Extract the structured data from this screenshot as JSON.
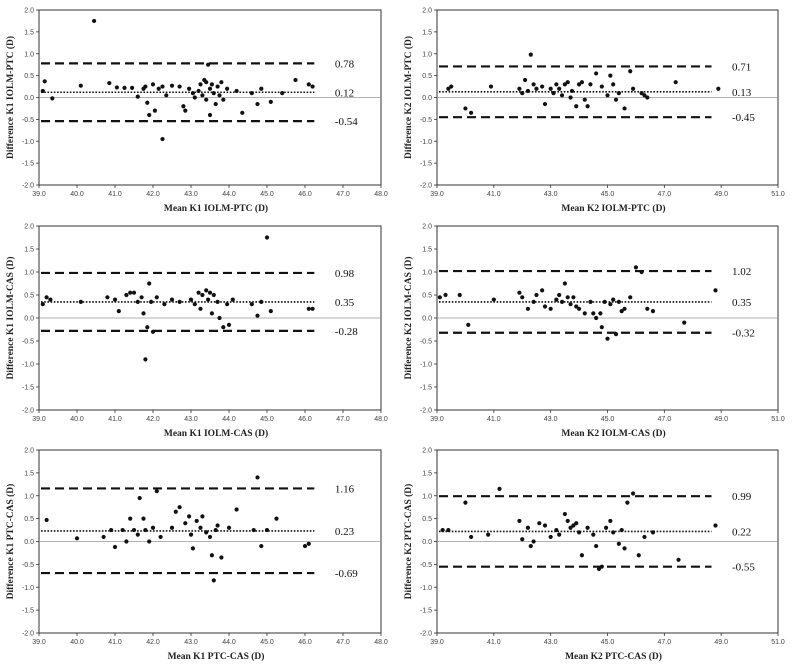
{
  "chart_data": [
    {
      "type": "scatter",
      "xlabel": "Mean K1 IOLM-PTC (D)",
      "ylabel": "Difference K1 IOLM-PTC (D)",
      "xlim": [
        39.0,
        48.0
      ],
      "ylim": [
        -2.0,
        2.0
      ],
      "xticks": [
        "39.0",
        "40.0",
        "41.0",
        "42.0",
        "43.0",
        "44.0",
        "45.0",
        "46.0",
        "47.0",
        "48.0"
      ],
      "yticks": [
        "2.0",
        "1.5",
        "1.0",
        "0.5",
        "0.0",
        "-0.5",
        "-1.0",
        "-1.5",
        "-2.0"
      ],
      "mean_diff": 0.12,
      "upper_loa": 0.78,
      "lower_loa": -0.54,
      "labels": {
        "upper": "0.78",
        "mean": "0.12",
        "lower": "-0.54"
      },
      "points": [
        [
          40.45,
          1.75
        ],
        [
          39.1,
          0.15
        ],
        [
          39.15,
          0.37
        ],
        [
          39.35,
          -0.02
        ],
        [
          40.1,
          0.27
        ],
        [
          40.85,
          0.33
        ],
        [
          41.05,
          0.23
        ],
        [
          41.25,
          0.22
        ],
        [
          41.45,
          0.22
        ],
        [
          41.6,
          0.02
        ],
        [
          41.75,
          0.2
        ],
        [
          41.8,
          0.25
        ],
        [
          41.85,
          -0.12
        ],
        [
          41.9,
          -0.4
        ],
        [
          42.0,
          0.3
        ],
        [
          42.05,
          -0.3
        ],
        [
          42.15,
          0.2
        ],
        [
          42.25,
          0.25
        ],
        [
          42.25,
          -0.95
        ],
        [
          42.35,
          0.05
        ],
        [
          42.5,
          0.27
        ],
        [
          42.7,
          0.25
        ],
        [
          42.8,
          -0.2
        ],
        [
          42.85,
          -0.3
        ],
        [
          42.95,
          0.2
        ],
        [
          43.05,
          0.1
        ],
        [
          43.1,
          0.0
        ],
        [
          43.2,
          0.15
        ],
        [
          43.25,
          0.3
        ],
        [
          43.3,
          0.05
        ],
        [
          43.35,
          0.4
        ],
        [
          43.4,
          0.35
        ],
        [
          43.4,
          -0.05
        ],
        [
          43.45,
          0.75
        ],
        [
          43.5,
          0.2
        ],
        [
          43.5,
          -0.4
        ],
        [
          43.55,
          0.3
        ],
        [
          43.6,
          0.1
        ],
        [
          43.65,
          -0.15
        ],
        [
          43.7,
          0.25
        ],
        [
          43.75,
          0.05
        ],
        [
          43.8,
          0.35
        ],
        [
          43.85,
          -0.05
        ],
        [
          43.95,
          0.2
        ],
        [
          44.2,
          0.15
        ],
        [
          44.35,
          -0.35
        ],
        [
          44.6,
          0.1
        ],
        [
          44.75,
          -0.15
        ],
        [
          44.85,
          0.2
        ],
        [
          45.1,
          -0.1
        ],
        [
          45.4,
          0.1
        ],
        [
          45.75,
          0.4
        ],
        [
          46.1,
          0.3
        ],
        [
          46.2,
          0.25
        ]
      ]
    },
    {
      "type": "scatter",
      "xlabel": "Mean K2 IOLM-PTC (D)",
      "ylabel": "Difference K2 IOLM-PTC (D)",
      "xlim": [
        39.0,
        51.0
      ],
      "ylim": [
        -2.0,
        2.0
      ],
      "xticks": [
        "39.0",
        "41.0",
        "43.0",
        "45.0",
        "47.0",
        "49.0",
        "51.0"
      ],
      "yticks": [
        "2.0",
        "1.5",
        "1.0",
        "0.5",
        "0.0",
        "-0.5",
        "-1.0",
        "-1.5",
        "-2.0"
      ],
      "mean_diff": 0.13,
      "upper_loa": 0.71,
      "lower_loa": -0.45,
      "labels": {
        "upper": "0.71",
        "mean": "0.13",
        "lower": "-0.45"
      },
      "points": [
        [
          39.4,
          0.2
        ],
        [
          39.5,
          0.25
        ],
        [
          40.0,
          -0.25
        ],
        [
          40.2,
          -0.35
        ],
        [
          40.9,
          0.25
        ],
        [
          41.9,
          0.2
        ],
        [
          42.0,
          0.1
        ],
        [
          42.1,
          0.4
        ],
        [
          42.2,
          0.15
        ],
        [
          42.3,
          0.98
        ],
        [
          42.4,
          0.3
        ],
        [
          42.5,
          0.2
        ],
        [
          42.7,
          0.25
        ],
        [
          42.8,
          -0.15
        ],
        [
          43.0,
          0.2
        ],
        [
          43.1,
          0.1
        ],
        [
          43.2,
          0.3
        ],
        [
          43.3,
          0.2
        ],
        [
          43.4,
          0.05
        ],
        [
          43.5,
          0.3
        ],
        [
          43.6,
          0.35
        ],
        [
          43.7,
          0.0
        ],
        [
          43.75,
          0.15
        ],
        [
          43.9,
          -0.2
        ],
        [
          44.0,
          0.3
        ],
        [
          44.1,
          0.35
        ],
        [
          44.2,
          -0.05
        ],
        [
          44.3,
          -0.2
        ],
        [
          44.4,
          0.3
        ],
        [
          44.6,
          0.55
        ],
        [
          44.8,
          0.25
        ],
        [
          45.0,
          0.05
        ],
        [
          45.1,
          0.5
        ],
        [
          45.2,
          0.3
        ],
        [
          45.3,
          -0.05
        ],
        [
          45.4,
          0.1
        ],
        [
          45.6,
          -0.25
        ],
        [
          45.8,
          0.6
        ],
        [
          45.9,
          0.2
        ],
        [
          46.2,
          0.1
        ],
        [
          46.3,
          0.05
        ],
        [
          46.4,
          0.0
        ],
        [
          47.4,
          0.35
        ],
        [
          48.9,
          0.2
        ]
      ]
    },
    {
      "type": "scatter",
      "xlabel": "Mean K1 IOLM-CAS (D)",
      "ylabel": "Difference K1 IOLM-CAS (D)",
      "xlim": [
        39.0,
        48.0
      ],
      "ylim": [
        -2.0,
        2.0
      ],
      "xticks": [
        "39.0",
        "40.0",
        "41.0",
        "42.0",
        "43.0",
        "44.0",
        "45.0",
        "46.0",
        "47.0",
        "48.0"
      ],
      "yticks": [
        "2.0",
        "1.5",
        "1.0",
        "0.5",
        "0.0",
        "-0.5",
        "-1.0",
        "-1.5",
        "-2.0"
      ],
      "mean_diff": 0.35,
      "upper_loa": 0.98,
      "lower_loa": -0.28,
      "labels": {
        "upper": "0.98",
        "mean": "0.35",
        "lower": "-0.28"
      },
      "points": [
        [
          39.1,
          0.3
        ],
        [
          39.2,
          0.45
        ],
        [
          39.3,
          0.4
        ],
        [
          40.1,
          0.35
        ],
        [
          40.8,
          0.45
        ],
        [
          41.0,
          0.4
        ],
        [
          41.1,
          0.15
        ],
        [
          41.3,
          0.5
        ],
        [
          41.4,
          0.55
        ],
        [
          41.5,
          0.55
        ],
        [
          41.6,
          0.35
        ],
        [
          41.7,
          0.45
        ],
        [
          41.75,
          0.1
        ],
        [
          41.8,
          -0.9
        ],
        [
          41.85,
          -0.2
        ],
        [
          41.9,
          0.75
        ],
        [
          41.95,
          0.35
        ],
        [
          42.0,
          -0.3
        ],
        [
          42.1,
          0.45
        ],
        [
          42.3,
          0.3
        ],
        [
          42.5,
          0.4
        ],
        [
          42.7,
          0.35
        ],
        [
          43.0,
          0.4
        ],
        [
          43.1,
          0.3
        ],
        [
          43.2,
          0.55
        ],
        [
          43.25,
          0.2
        ],
        [
          43.3,
          0.5
        ],
        [
          43.4,
          0.6
        ],
        [
          43.45,
          0.4
        ],
        [
          43.5,
          0.55
        ],
        [
          43.55,
          0.1
        ],
        [
          43.6,
          0.5
        ],
        [
          43.7,
          0.35
        ],
        [
          43.75,
          0.0
        ],
        [
          43.85,
          -0.2
        ],
        [
          43.95,
          0.3
        ],
        [
          44.0,
          -0.15
        ],
        [
          44.1,
          0.4
        ],
        [
          44.6,
          0.3
        ],
        [
          44.75,
          0.05
        ],
        [
          44.85,
          0.35
        ],
        [
          45.0,
          1.75
        ],
        [
          45.1,
          0.15
        ],
        [
          46.1,
          0.2
        ],
        [
          46.2,
          0.2
        ]
      ]
    },
    {
      "type": "scatter",
      "xlabel": "Mean K2 IOLM-CAS (D)",
      "ylabel": "Difference K2 IOLM-CAS (D)",
      "xlim": [
        39.0,
        51.0
      ],
      "ylim": [
        -2.0,
        2.0
      ],
      "xticks": [
        "39.0",
        "41.0",
        "43.0",
        "45.0",
        "47.0",
        "49.0",
        "51.0"
      ],
      "yticks": [
        "2.0",
        "1.5",
        "1.0",
        "0.5",
        "0.0",
        "-0.5",
        "-1.0",
        "-1.5",
        "-2.0"
      ],
      "mean_diff": 0.35,
      "upper_loa": 1.02,
      "lower_loa": -0.32,
      "labels": {
        "upper": "1.02",
        "mean": "0.35",
        "lower": "-0.32"
      },
      "points": [
        [
          39.1,
          0.45
        ],
        [
          39.3,
          0.5
        ],
        [
          39.8,
          0.5
        ],
        [
          40.1,
          -0.15
        ],
        [
          41.0,
          0.4
        ],
        [
          41.9,
          0.55
        ],
        [
          42.0,
          0.45
        ],
        [
          42.2,
          0.2
        ],
        [
          42.4,
          0.35
        ],
        [
          42.5,
          0.5
        ],
        [
          42.7,
          0.6
        ],
        [
          42.8,
          0.25
        ],
        [
          43.0,
          0.2
        ],
        [
          43.2,
          0.4
        ],
        [
          43.3,
          0.5
        ],
        [
          43.4,
          0.35
        ],
        [
          43.5,
          0.75
        ],
        [
          43.6,
          0.45
        ],
        [
          43.7,
          0.3
        ],
        [
          43.8,
          0.45
        ],
        [
          43.9,
          0.25
        ],
        [
          44.0,
          0.2
        ],
        [
          44.2,
          0.1
        ],
        [
          44.4,
          0.35
        ],
        [
          44.5,
          0.1
        ],
        [
          44.6,
          0.0
        ],
        [
          44.75,
          0.1
        ],
        [
          44.8,
          -0.2
        ],
        [
          44.9,
          0.35
        ],
        [
          45.0,
          -0.45
        ],
        [
          45.1,
          0.3
        ],
        [
          45.2,
          0.4
        ],
        [
          45.3,
          -0.35
        ],
        [
          45.4,
          0.35
        ],
        [
          45.5,
          0.15
        ],
        [
          45.6,
          0.2
        ],
        [
          45.8,
          0.45
        ],
        [
          46.0,
          1.1
        ],
        [
          46.2,
          1.0
        ],
        [
          46.4,
          0.2
        ],
        [
          46.6,
          0.15
        ],
        [
          47.7,
          -0.1
        ],
        [
          48.8,
          0.6
        ]
      ]
    },
    {
      "type": "scatter",
      "xlabel": "Mean K1 PTC-CAS (D)",
      "ylabel": "Difference K1 PTC-CAS (D)",
      "xlim": [
        39.0,
        48.0
      ],
      "ylim": [
        -2.0,
        2.0
      ],
      "xticks": [
        "39.0",
        "40.0",
        "41.0",
        "42.0",
        "43.0",
        "44.0",
        "45.0",
        "46.0",
        "47.0",
        "48.0"
      ],
      "yticks": [
        "2.0",
        "1.5",
        "1.0",
        "0.5",
        "0.0",
        "-0.5",
        "-1.0",
        "-1.5",
        "-2.0"
      ],
      "mean_diff": 0.23,
      "upper_loa": 1.16,
      "lower_loa": -0.69,
      "labels": {
        "upper": "1.16",
        "mean": "0.23",
        "lower": "-0.69"
      },
      "points": [
        [
          39.2,
          0.47
        ],
        [
          40.0,
          0.07
        ],
        [
          40.7,
          0.1
        ],
        [
          40.9,
          0.25
        ],
        [
          41.0,
          -0.12
        ],
        [
          41.2,
          0.25
        ],
        [
          41.3,
          0.0
        ],
        [
          41.4,
          0.5
        ],
        [
          41.5,
          0.25
        ],
        [
          41.6,
          0.15
        ],
        [
          41.65,
          0.95
        ],
        [
          41.75,
          0.5
        ],
        [
          41.8,
          0.25
        ],
        [
          41.9,
          0.0
        ],
        [
          42.0,
          0.3
        ],
        [
          42.1,
          1.1
        ],
        [
          42.2,
          0.1
        ],
        [
          42.5,
          0.3
        ],
        [
          42.6,
          0.65
        ],
        [
          42.7,
          0.75
        ],
        [
          42.85,
          0.4
        ],
        [
          42.95,
          0.55
        ],
        [
          43.0,
          0.15
        ],
        [
          43.05,
          -0.15
        ],
        [
          43.15,
          0.45
        ],
        [
          43.25,
          0.3
        ],
        [
          43.3,
          0.55
        ],
        [
          43.4,
          0.2
        ],
        [
          43.5,
          0.1
        ],
        [
          43.55,
          -0.3
        ],
        [
          43.6,
          -0.85
        ],
        [
          43.65,
          0.25
        ],
        [
          43.7,
          0.35
        ],
        [
          43.8,
          -0.35
        ],
        [
          44.0,
          0.3
        ],
        [
          44.2,
          0.7
        ],
        [
          44.65,
          0.25
        ],
        [
          44.75,
          1.4
        ],
        [
          44.85,
          -0.1
        ],
        [
          45.0,
          0.25
        ],
        [
          45.25,
          0.5
        ],
        [
          46.0,
          -0.1
        ],
        [
          46.1,
          -0.05
        ]
      ]
    },
    {
      "type": "scatter",
      "xlabel": "Mean K2 PTC-CAS (D)",
      "ylabel": "Difference K2 PTC-CAS (D)",
      "xlim": [
        39.0,
        51.0
      ],
      "ylim": [
        -2.0,
        2.0
      ],
      "xticks": [
        "39.0",
        "41.0",
        "43.0",
        "45.0",
        "47.0",
        "49.0",
        "51.0"
      ],
      "yticks": [
        "2.0",
        "1.5",
        "1.0",
        "0.5",
        "0.0",
        "-0.5",
        "-1.0",
        "-1.5",
        "-2.0"
      ],
      "mean_diff": 0.22,
      "upper_loa": 0.99,
      "lower_loa": -0.55,
      "labels": {
        "upper": "0.99",
        "mean": "0.22",
        "lower": "-0.55"
      },
      "points": [
        [
          39.2,
          0.25
        ],
        [
          39.4,
          0.25
        ],
        [
          40.0,
          0.85
        ],
        [
          40.2,
          0.1
        ],
        [
          40.8,
          0.15
        ],
        [
          41.2,
          1.15
        ],
        [
          41.9,
          0.45
        ],
        [
          42.0,
          0.05
        ],
        [
          42.2,
          0.3
        ],
        [
          42.3,
          -0.1
        ],
        [
          42.4,
          0.0
        ],
        [
          42.6,
          0.4
        ],
        [
          42.8,
          0.35
        ],
        [
          43.0,
          0.1
        ],
        [
          43.2,
          0.25
        ],
        [
          43.3,
          0.15
        ],
        [
          43.5,
          0.6
        ],
        [
          43.6,
          0.45
        ],
        [
          43.7,
          0.3
        ],
        [
          43.8,
          0.35
        ],
        [
          43.9,
          0.4
        ],
        [
          44.0,
          0.2
        ],
        [
          44.1,
          -0.3
        ],
        [
          44.3,
          0.3
        ],
        [
          44.5,
          0.15
        ],
        [
          44.6,
          -0.1
        ],
        [
          44.7,
          -0.6
        ],
        [
          44.8,
          -0.55
        ],
        [
          44.95,
          0.3
        ],
        [
          45.1,
          0.45
        ],
        [
          45.2,
          0.2
        ],
        [
          45.4,
          -0.05
        ],
        [
          45.5,
          0.25
        ],
        [
          45.6,
          -0.15
        ],
        [
          45.7,
          0.85
        ],
        [
          45.9,
          1.05
        ],
        [
          46.1,
          -0.3
        ],
        [
          46.3,
          0.1
        ],
        [
          46.6,
          0.2
        ],
        [
          47.5,
          -0.4
        ],
        [
          48.8,
          0.35
        ]
      ]
    }
  ]
}
